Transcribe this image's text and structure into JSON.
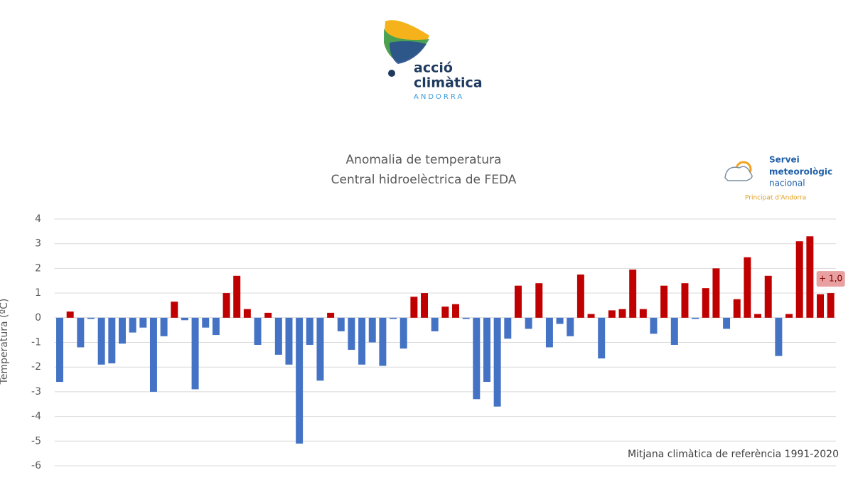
{
  "logos": {
    "main": {
      "line1": "acció",
      "line2": "climàtica",
      "line3": "ANDORRA"
    },
    "smn": {
      "line1": "Servei",
      "line2": "meteorològic",
      "line3": "nacional",
      "line4": "Principat d'Andorra"
    }
  },
  "chart_data": {
    "type": "bar",
    "title": "Anomalia de temperatura",
    "subtitle": "Central hidroelèctrica de FEDA",
    "ylabel": "Temperatura (ºC)",
    "note": "Mitjana climàtica de referència 1991-2020",
    "categories": [
      null,
      null,
      null,
      null,
      null,
      null,
      null,
      null,
      null,
      null,
      null,
      null,
      null,
      null,
      null,
      null,
      null,
      null,
      null,
      null,
      null,
      null,
      null,
      null,
      null,
      null,
      null,
      null,
      null,
      null,
      null,
      null,
      null,
      null,
      null,
      null,
      null,
      null,
      null,
      null,
      null,
      null,
      null,
      null,
      null,
      null,
      null,
      null,
      null,
      null,
      null,
      null,
      null,
      null,
      null,
      null,
      null,
      null,
      null,
      null,
      null,
      null,
      null,
      null,
      null,
      null,
      null,
      null,
      null,
      null,
      null,
      null,
      null,
      null,
      null
    ],
    "values": [
      -2.6,
      0.25,
      -1.2,
      -0.05,
      -1.9,
      -1.85,
      -1.05,
      -0.6,
      -0.4,
      -3.0,
      -0.75,
      0.65,
      -0.1,
      -2.9,
      -0.4,
      -0.7,
      1.0,
      1.7,
      0.35,
      -1.1,
      0.2,
      -1.5,
      -1.9,
      -5.1,
      -1.1,
      -2.55,
      0.2,
      -0.55,
      -1.3,
      -1.9,
      -1.0,
      -1.95,
      -0.05,
      -1.25,
      0.85,
      1.0,
      -0.55,
      0.45,
      0.55,
      -0.05,
      -3.3,
      -2.6,
      -3.6,
      -0.85,
      1.3,
      -0.45,
      1.4,
      -1.2,
      -0.25,
      -0.75,
      1.75,
      0.15,
      -1.65,
      0.3,
      0.35,
      1.95,
      0.35,
      -0.65,
      1.3,
      -1.1,
      1.4,
      -0.05,
      1.2,
      2.0,
      -0.45,
      0.75,
      2.45,
      0.15,
      1.7,
      -1.55,
      0.15,
      3.1,
      3.3,
      0.95,
      1.0
    ],
    "value_labels": [
      null,
      null,
      null,
      null,
      null,
      null,
      null,
      null,
      null,
      null,
      null,
      null,
      null,
      null,
      null,
      null,
      null,
      null,
      null,
      null,
      null,
      null,
      null,
      null,
      null,
      null,
      null,
      null,
      null,
      null,
      null,
      null,
      null,
      null,
      null,
      null,
      null,
      null,
      null,
      null,
      null,
      null,
      null,
      null,
      null,
      null,
      null,
      null,
      null,
      null,
      null,
      null,
      null,
      null,
      null,
      null,
      null,
      null,
      null,
      null,
      null,
      null,
      null,
      null,
      null,
      null,
      null,
      null,
      null,
      null,
      null,
      null,
      null,
      null,
      "+ 1,0"
    ],
    "positive_color": "#c00000",
    "negative_color": "#4472c4",
    "ylim": [
      -6,
      4
    ],
    "yticks": [
      -6,
      -5,
      -4,
      -3,
      -2,
      -1,
      0,
      1,
      2,
      3,
      4
    ],
    "grid": true
  }
}
